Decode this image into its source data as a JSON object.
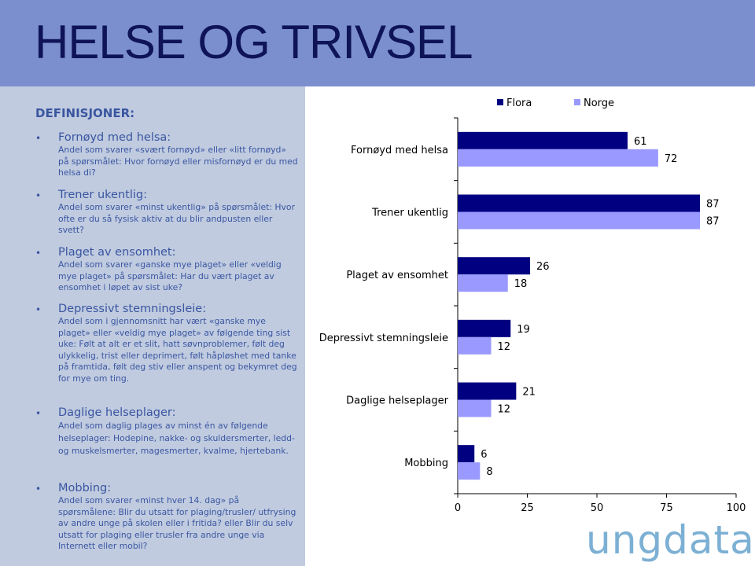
{
  "page": {
    "title": "HELSE OG TRIVSEL",
    "logo_text": "ungdata"
  },
  "definitions": {
    "heading": "DEFINISJONER:",
    "items": [
      {
        "term": "Fornøyd med helsa:",
        "desc": "Andel som svarer «svært fornøyd» eller «litt fornøyd» på spørsmålet: Hvor fornøyd eller misfornøyd er du med helsa di?"
      },
      {
        "term": "Trener ukentlig:",
        "desc": "Andel som svarer «minst ukentlig» på spørsmålet: Hvor ofte er du så fysisk aktiv at du blir andpusten eller svett?"
      },
      {
        "term": "Plaget av ensomhet:",
        "desc": "Andel som svarer «ganske mye plaget» eller «veldig mye plaget» på spørsmålet: Har du vært plaget av ensomhet i løpet av sist uke?"
      },
      {
        "term": "Depressivt stemningsleie:",
        "desc": "Andel som i gjennomsnitt har vært «ganske mye plaget» eller «veldig mye plaget» av følgende ting sist uke: Følt at alt er et slit, hatt søvnproblemer, følt deg ulykkelig, trist eller deprimert, følt håpløshet med tanke på framtida, følt deg stiv eller anspent og bekymret deg for mye om ting."
      },
      {
        "term": "Daglige helseplager:",
        "desc": "Andel som daglig plages av minst én av følgende helseplager: Hodepine, nakke- og skuldersmerter, ledd- og muskelsmerter, magesmerter, kvalme, hjertebank."
      },
      {
        "term": "Mobbing:",
        "desc": "Andel som svarer «minst hver 14. dag» på spørsmålene: Blir du utsatt for plaging/trusler/ utfrysing av andre unge på skolen eller i fritida? eller Blir du selv utsatt for plaging eller trusler fra andre unge via Internett eller mobil?"
      }
    ]
  },
  "chart_data": {
    "type": "bar",
    "orientation": "horizontal",
    "categories": [
      "Fornøyd med helsa",
      "Trener ukentlig",
      "Plaget av ensomhet",
      "Depressivt stemningsleie",
      "Daglige helseplager",
      "Mobbing"
    ],
    "series": [
      {
        "name": "Flora",
        "values": [
          61,
          87,
          26,
          19,
          21,
          6
        ],
        "color": "#000080"
      },
      {
        "name": "Norge",
        "values": [
          72,
          87,
          18,
          12,
          12,
          8
        ],
        "color": "#9999ff"
      }
    ],
    "xlim": [
      0,
      100
    ],
    "xticks": [
      0,
      25,
      50,
      75,
      100
    ],
    "data_labels": true,
    "legend_position": "top",
    "grid": false
  }
}
